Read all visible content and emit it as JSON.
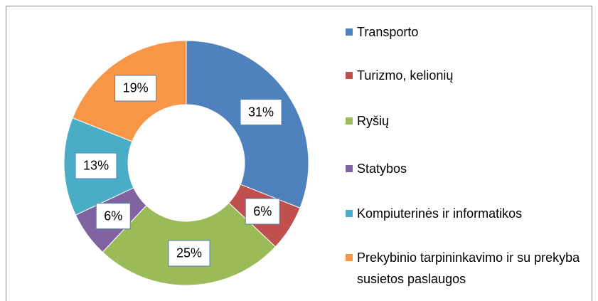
{
  "chart_data": {
    "type": "donut",
    "categories": [
      "Transporto",
      "Turizmo, kelionių",
      "Ryšių",
      "Statybos",
      "Kompiuterinės ir informatikos",
      "Prekybinio tarpininkavimo ir su prekyba susietos paslaugos"
    ],
    "values": [
      31,
      6,
      25,
      6,
      13,
      19
    ],
    "value_labels": [
      "31%",
      "6%",
      "25%",
      "6%",
      "13%",
      "19%"
    ],
    "colors": [
      "#4f81bd",
      "#c0504d",
      "#9bbb59",
      "#8064a2",
      "#4bacc6",
      "#f79646"
    ],
    "legend": "right"
  }
}
